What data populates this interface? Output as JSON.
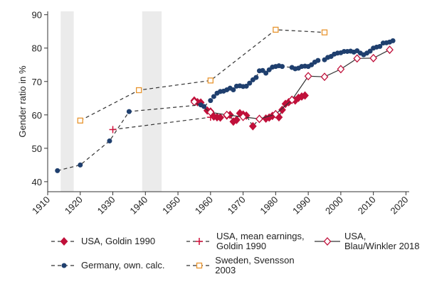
{
  "chart_data": {
    "type": "line",
    "y_label": "Gender ratio in %",
    "xlim": [
      1910,
      2021
    ],
    "ylim": [
      37,
      91
    ],
    "xticks": [
      1910,
      1920,
      1930,
      1940,
      1950,
      1960,
      1970,
      1980,
      1990,
      2000,
      2010,
      2020
    ],
    "yticks": [
      40,
      50,
      60,
      70,
      80,
      90
    ],
    "shaded_periods": [
      {
        "start": 1914,
        "end": 1918
      },
      {
        "start": 1939,
        "end": 1945
      }
    ],
    "shade_color": "#ebebeb",
    "line_color": "#333333",
    "series": [
      {
        "name": "USA, Goldin 1990",
        "color": "#c0103a",
        "marker": "diamond",
        "dashed": true,
        "x": [
          1955,
          1956,
          1957,
          1959,
          1960,
          1961,
          1962,
          1963,
          1965,
          1966,
          1967,
          1968,
          1969,
          1970,
          1971,
          1973,
          1975,
          1977,
          1978,
          1979,
          1980,
          1981,
          1982,
          1983,
          1984,
          1985,
          1986,
          1987,
          1988,
          1989
        ],
        "values": [
          64.3,
          63.8,
          63.7,
          61.3,
          61,
          59.5,
          59.3,
          59.2,
          59.8,
          60,
          58,
          58.5,
          60.5,
          60.1,
          59.8,
          56.6,
          58.8,
          58.9,
          59.2,
          59.7,
          60.2,
          59.3,
          61.5,
          63.3,
          63.8,
          64.5,
          64.3,
          65.1,
          65.5,
          65.8
        ]
      },
      {
        "name": "USA, mean earnings,\nGoldin 1990",
        "color": "#d0103a",
        "marker": "plus",
        "dashed": true,
        "x": [
          1930,
          1960
        ],
        "values": [
          55.6,
          59.3
        ]
      },
      {
        "name": "USA,\nBlau/Winkler 2018",
        "color": "#c0103a",
        "marker": "diamond-hollow",
        "dashed": false,
        "x": [
          1955,
          1960,
          1965,
          1970,
          1975,
          1980,
          1985,
          1990,
          1995,
          2000,
          2005,
          2010,
          2015
        ],
        "values": [
          63.9,
          60.8,
          60,
          59.4,
          58.8,
          60.2,
          64.5,
          71.6,
          71.4,
          73.7,
          76.9,
          77,
          79.5
        ]
      },
      {
        "name": "Germany, own. calc.",
        "color": "#1f3f6e",
        "marker": "circle",
        "dashed": true,
        "x": [
          1913,
          1920,
          1929,
          1935,
          1957,
          1958,
          1960,
          1961,
          1962,
          1963,
          1964,
          1965,
          1966,
          1967,
          1968,
          1969,
          1970,
          1971,
          1972,
          1973,
          1974,
          1975,
          1976,
          1977,
          1978,
          1979,
          1980,
          1981,
          1982,
          1985,
          1986,
          1987,
          1988,
          1989,
          1990,
          1991,
          1992,
          1993,
          1995,
          1996,
          1997,
          1998,
          1999,
          2000,
          2001,
          2002,
          2003,
          2004,
          2005,
          2006,
          2007,
          2008,
          2009,
          2010,
          2011,
          2012,
          2013,
          2014,
          2015,
          2016
        ],
        "values": [
          43.3,
          45,
          52.2,
          61,
          63,
          62.5,
          64.3,
          65.5,
          66.5,
          67,
          67.1,
          67.5,
          68,
          67.5,
          68.6,
          68.7,
          68.5,
          68.6,
          69.5,
          70.5,
          71.2,
          73.2,
          73.3,
          72.5,
          73.5,
          74.3,
          74.5,
          74.7,
          74.5,
          74.2,
          73.8,
          74,
          74.5,
          74.6,
          74.5,
          75,
          75.8,
          76.3,
          76.5,
          77.2,
          77.5,
          78.2,
          78.5,
          78.6,
          79,
          79,
          79.1,
          78.8,
          79.2,
          78.5,
          78,
          78.5,
          79.1,
          80,
          80.3,
          80.5,
          81.5,
          81.6,
          81.8,
          82.2
        ]
      },
      {
        "name": "Sweden, Svensson 2003",
        "color": "#e8952f",
        "marker": "square-hollow",
        "dashed": true,
        "x": [
          1920,
          1938,
          1960,
          1980,
          1995
        ],
        "values": [
          58.3,
          67.4,
          70.3,
          85.5,
          84.7
        ]
      }
    ]
  }
}
